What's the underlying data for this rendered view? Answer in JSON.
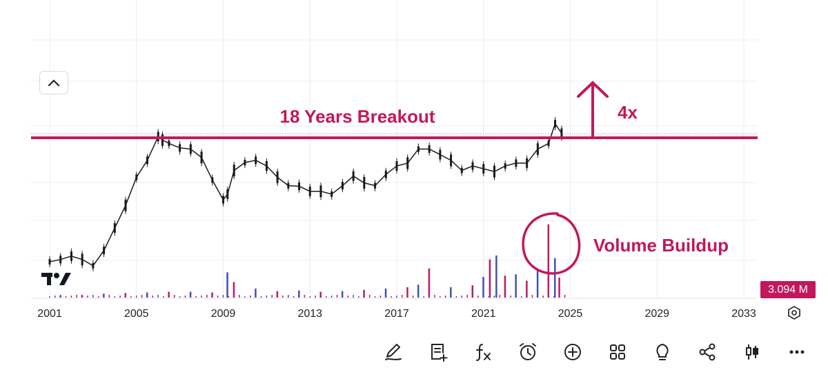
{
  "chart_data": {
    "type": "candlestick",
    "x_axis": {
      "tick_labels": [
        "2001",
        "2005",
        "2009",
        "2013",
        "2017",
        "2021",
        "2025",
        "2029",
        "2033"
      ],
      "range": [
        2001,
        2034
      ]
    },
    "price_series": {
      "x": [
        2001.0,
        2001.5,
        2002.0,
        2002.5,
        2003.0,
        2003.5,
        2004.0,
        2004.5,
        2005.0,
        2005.5,
        2006.0,
        2006.2,
        2006.5,
        2007.0,
        2007.5,
        2008.0,
        2008.5,
        2009.0,
        2009.2,
        2009.5,
        2010.0,
        2010.5,
        2011.0,
        2011.5,
        2012.0,
        2012.5,
        2013.0,
        2013.5,
        2014.0,
        2014.5,
        2015.0,
        2015.5,
        2016.0,
        2016.5,
        2017.0,
        2017.5,
        2018.0,
        2018.5,
        2019.0,
        2019.5,
        2020.0,
        2020.5,
        2021.0,
        2021.5,
        2022.0,
        2022.5,
        2023.0,
        2023.5,
        2024.0,
        2024.3,
        2024.6
      ],
      "price_units_note_free": true,
      "values": [
        100,
        104,
        110,
        104,
        93,
        120,
        160,
        200,
        250,
        280,
        322,
        316,
        310,
        302,
        300,
        285,
        245,
        210,
        220,
        262,
        276,
        280,
        270,
        250,
        235,
        234,
        225,
        225,
        220,
        235,
        252,
        240,
        235,
        255,
        270,
        275,
        300,
        300,
        290,
        280,
        262,
        270,
        265,
        260,
        270,
        275,
        275,
        300,
        310,
        345,
        328
      ]
    },
    "volume_series": {
      "x": [
        2001.5,
        2002.5,
        2003.5,
        2004.5,
        2005.5,
        2006.5,
        2007.5,
        2008.5,
        2009.2,
        2009.5,
        2010.5,
        2011.5,
        2012.5,
        2013.5,
        2014.5,
        2015.5,
        2016.5,
        2017.5,
        2018.0,
        2018.5,
        2019.5,
        2020.5,
        2021.0,
        2021.3,
        2021.6,
        2022.0,
        2022.5,
        2023.0,
        2023.5,
        2024.0,
        2024.3,
        2024.5
      ],
      "values": [
        0.3,
        0.4,
        0.6,
        0.7,
        0.8,
        0.9,
        0.9,
        0.8,
        3.9,
        2.4,
        1.4,
        1.0,
        1.1,
        0.9,
        1.0,
        1.2,
        1.4,
        1.6,
        2.0,
        4.5,
        1.6,
        1.9,
        3.2,
        5.9,
        6.5,
        3.4,
        3.6,
        2.6,
        4.2,
        11.3,
        6.1,
        3.1
      ],
      "last_value_label": "3.094 M"
    },
    "reference_line": {
      "price": 320
    },
    "annotations": {
      "breakout_label": "18 Years Breakout",
      "multiplier_label": "4x",
      "volume_label": "Volume Buildup"
    },
    "colors": {
      "accent": "#c2185b",
      "up_volume": "#3f51b5",
      "down_volume": "#c2185b",
      "candle": "#1a1a1a",
      "grid": "#ececec"
    }
  },
  "ui": {
    "collapse_icon": "chevron-up-icon",
    "logo_icon": "tradingview-logo",
    "settings_icon": "settings-hexagon-icon",
    "toolbar_icons": [
      "drawing-pen-icon",
      "note-add-icon",
      "function-fx-icon",
      "alarm-clock-icon",
      "add-circle-icon",
      "grid-apps-icon",
      "lightbulb-icon",
      "share-icon",
      "candlestick-icon",
      "more-icon"
    ]
  }
}
